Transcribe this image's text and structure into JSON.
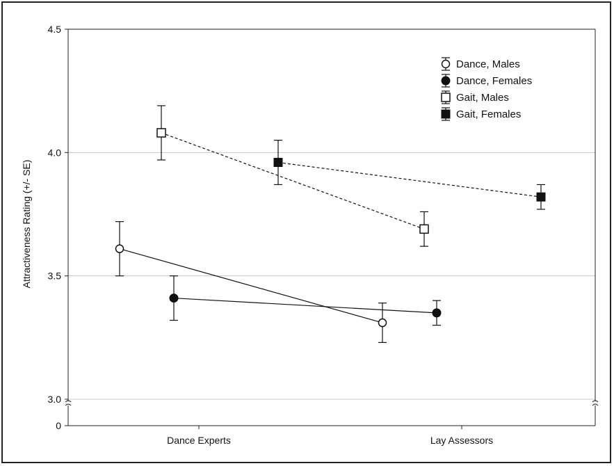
{
  "chart_data": {
    "type": "line",
    "ylabel": "Attractiveness Rating (+/- SE)",
    "xlabel": "",
    "categories": [
      "Dance Experts",
      "Lay Assessors"
    ],
    "yticks": [
      {
        "label": "3.0",
        "value": 3.0
      },
      {
        "label": "3.5",
        "value": 3.5
      },
      {
        "label": "4.0",
        "value": 4.0
      },
      {
        "label": "4.5",
        "value": 4.5
      }
    ],
    "y_zero_label": "0",
    "ylim": [
      3.0,
      4.5
    ],
    "axis_break": true,
    "grid": "horizontal",
    "legend_position": "top-right",
    "series": [
      {
        "name": "Dance, Males",
        "marker": "open-circle",
        "line": "solid",
        "values": [
          3.61,
          3.31
        ],
        "se": [
          0.11,
          0.08
        ]
      },
      {
        "name": "Dance, Females",
        "marker": "filled-circle",
        "line": "solid",
        "values": [
          3.41,
          3.35
        ],
        "se": [
          0.09,
          0.05
        ]
      },
      {
        "name": "Gait, Males",
        "marker": "open-square",
        "line": "dashed",
        "values": [
          4.08,
          3.69
        ],
        "se": [
          0.11,
          0.07
        ]
      },
      {
        "name": "Gait, Females",
        "marker": "filled-square",
        "line": "dashed",
        "values": [
          3.96,
          3.82
        ],
        "se": [
          0.09,
          0.05
        ]
      }
    ],
    "colors": {
      "marks": "#111111",
      "grid": "#c8c8c8",
      "axis": "#222222"
    }
  }
}
